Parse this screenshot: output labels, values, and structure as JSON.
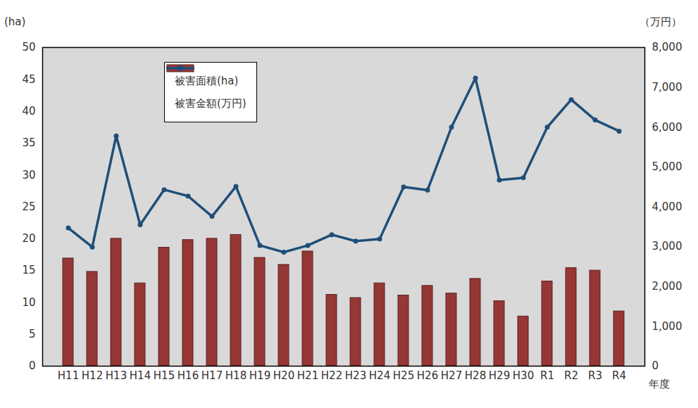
{
  "chart_data": {
    "type": "bar",
    "xlabel": "年度",
    "ylabel": "(ha)",
    "y2label": "（万円）",
    "categories": [
      "H11",
      "H12",
      "H13",
      "H14",
      "H15",
      "H16",
      "H17",
      "H18",
      "H19",
      "H20",
      "H21",
      "H22",
      "H23",
      "H24",
      "H25",
      "H26",
      "H27",
      "H28",
      "H29",
      "H30",
      "R1",
      "R2",
      "R3",
      "R4"
    ],
    "series": [
      {
        "name": "被害面積(ha)",
        "type": "bar",
        "color": "#953735",
        "values": [
          16.9,
          14.8,
          20.0,
          13.0,
          18.6,
          19.8,
          20.0,
          20.6,
          17.0,
          15.9,
          18.0,
          11.2,
          10.7,
          13.0,
          11.1,
          12.6,
          11.4,
          13.7,
          10.2,
          7.8,
          13.3,
          15.4,
          15.0,
          8.6
        ]
      },
      {
        "name": "被害金額(万円)",
        "type": "line",
        "axis": "y2",
        "color": "#1f4e79",
        "marker": "circle",
        "values": [
          3470,
          2990,
          5780,
          3550,
          4430,
          4270,
          3760,
          4510,
          3030,
          2860,
          3030,
          3300,
          3140,
          3190,
          4500,
          4420,
          6000,
          7230,
          4670,
          4730,
          6000,
          6690,
          6180,
          5900
        ]
      }
    ],
    "ylim": [
      0,
      50
    ],
    "yticks": [
      0,
      5,
      10,
      15,
      20,
      25,
      30,
      35,
      40,
      45,
      50
    ],
    "y2lim": [
      0,
      8000
    ],
    "y2ticks": [
      0,
      {
        "value": 1000,
        "label": "1,000"
      },
      {
        "value": 2000,
        "label": "2,000"
      },
      {
        "value": 3000,
        "label": "3,000"
      },
      {
        "value": 4000,
        "label": "4,000"
      },
      {
        "value": 5000,
        "label": "5,000"
      },
      {
        "value": 6000,
        "label": "6,000"
      },
      {
        "value": 7000,
        "label": "7,000"
      },
      {
        "value": 8000,
        "label": "8,000"
      }
    ],
    "legend": "top-left",
    "grid": false
  }
}
